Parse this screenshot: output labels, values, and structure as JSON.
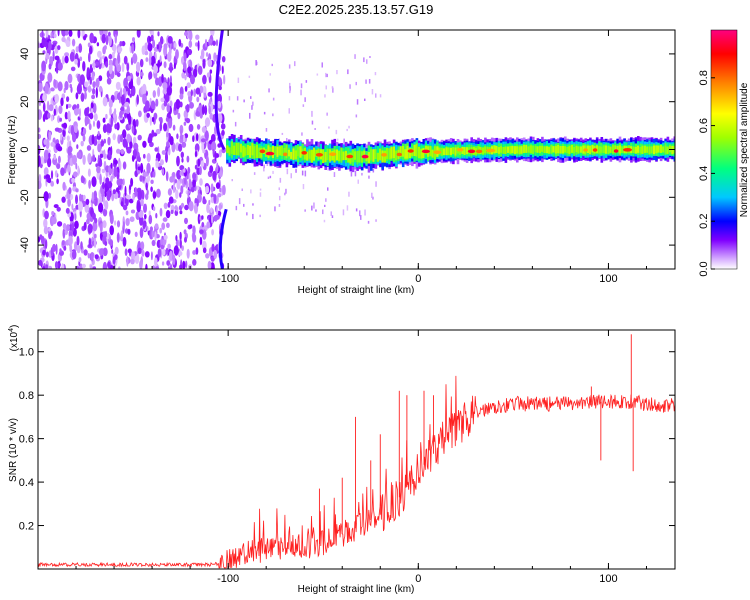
{
  "chart_data": [
    {
      "type": "heatmap",
      "title": "C2E2.2025.235.13.57.G19",
      "xlabel": "Height of straight line (km)",
      "ylabel": "Frequency (Hz)",
      "xlim": [
        -200,
        135
      ],
      "ylim": [
        -50,
        50
      ],
      "xticks": [
        -100,
        0,
        100
      ],
      "yticks": [
        -40,
        -20,
        0,
        20,
        40
      ],
      "colorbar": {
        "label": "Normalized spectral amplitude",
        "range": [
          0.0,
          1.0
        ],
        "ticks": [
          0.0,
          0.2,
          0.4,
          0.6,
          0.8
        ],
        "colormap": [
          "#ffffff",
          "#d8b0ff",
          "#8000ff",
          "#0000ff",
          "#00c8ff",
          "#00ff80",
          "#a0ff00",
          "#ffff00",
          "#ff8000",
          "#ff0000",
          "#ff0080"
        ]
      },
      "regions": [
        {
          "name": "noise",
          "x_range": [
            -200,
            -102
          ],
          "freq_range": [
            -50,
            50
          ],
          "amplitude": 0.1
        },
        {
          "name": "transition",
          "x_range": [
            -102,
            -75
          ],
          "freq_range": [
            -8,
            8
          ],
          "amplitude": 0.35
        },
        {
          "name": "signal-band",
          "x_range": [
            -75,
            135
          ],
          "center_freq": [
            [
              -100,
              0
            ],
            [
              -60,
              -2
            ],
            [
              -30,
              -3
            ],
            [
              0,
              -1
            ],
            [
              50,
              0
            ],
            [
              100,
              0
            ],
            [
              135,
              0
            ]
          ],
          "half_width": 3,
          "peak_amplitude": 0.9
        }
      ]
    },
    {
      "type": "line",
      "title": "",
      "xlabel": "Height of straight line (km)",
      "ylabel": "SNR (10 * v/v)",
      "y_scale_label": "(x10^4)",
      "y_scale_base": "(x10",
      "y_scale_exp": "4",
      "xlim": [
        -200,
        135
      ],
      "ylim": [
        0,
        1.1
      ],
      "xticks": [
        -100,
        0,
        100
      ],
      "yticks": [
        0.2,
        0.4,
        0.6,
        0.8,
        1.0
      ],
      "series": [
        {
          "name": "SNR",
          "color": "#ff2020",
          "x": [
            -200,
            -150,
            -110,
            -100,
            -90,
            -80,
            -70,
            -60,
            -50,
            -40,
            -30,
            -20,
            -10,
            0,
            10,
            20,
            30,
            40,
            50,
            60,
            70,
            80,
            90,
            100,
            110,
            120,
            135
          ],
          "y": [
            0.02,
            0.02,
            0.02,
            0.03,
            0.07,
            0.09,
            0.1,
            0.1,
            0.12,
            0.16,
            0.2,
            0.25,
            0.33,
            0.45,
            0.55,
            0.65,
            0.72,
            0.75,
            0.76,
            0.76,
            0.76,
            0.76,
            0.77,
            0.77,
            0.77,
            0.76,
            0.75
          ]
        }
      ],
      "spikes": [
        [
          -52,
          0.37
        ],
        [
          -40,
          0.42
        ],
        [
          -33,
          0.7
        ],
        [
          -25,
          0.5
        ],
        [
          -20,
          0.62
        ],
        [
          -10,
          0.82
        ],
        [
          -6,
          0.8
        ],
        [
          3,
          0.82
        ],
        [
          8,
          0.8
        ],
        [
          91,
          0.84
        ],
        [
          96,
          0.5
        ],
        [
          112,
          1.08
        ],
        [
          113,
          0.45
        ]
      ]
    }
  ]
}
